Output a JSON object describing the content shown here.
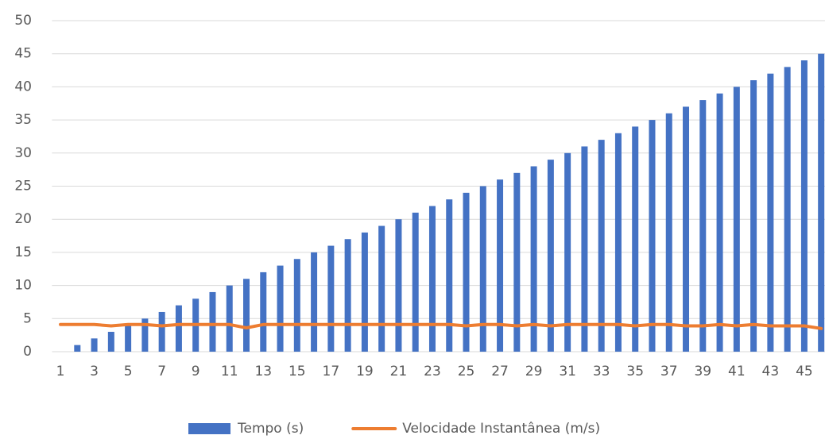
{
  "chart_data": {
    "type": "bar",
    "categories": [
      1,
      null,
      3,
      null,
      5,
      null,
      7,
      null,
      9,
      null,
      11,
      null,
      13,
      null,
      15,
      null,
      17,
      null,
      19,
      null,
      21,
      null,
      23,
      null,
      25,
      null,
      27,
      null,
      29,
      null,
      31,
      null,
      33,
      null,
      35,
      null,
      37,
      null,
      39,
      null,
      41,
      null,
      43,
      null,
      45,
      null
    ],
    "series": [
      {
        "name": "Tempo (s)",
        "type": "bar",
        "color": "#4472c4",
        "values": [
          0,
          1,
          2,
          3,
          4,
          5,
          6,
          7,
          8,
          9,
          10,
          11,
          12,
          13,
          14,
          15,
          16,
          17,
          18,
          19,
          20,
          21,
          22,
          23,
          24,
          25,
          26,
          27,
          28,
          29,
          30,
          31,
          32,
          33,
          34,
          35,
          36,
          37,
          38,
          39,
          40,
          41,
          42,
          43,
          44,
          45
        ]
      },
      {
        "name": "Velocidade Instantânea (m/s)",
        "type": "line",
        "color": "#ed7d31",
        "values": [
          4.1,
          4.1,
          4.1,
          3.9,
          4.1,
          4.1,
          3.9,
          4.1,
          4.1,
          4.1,
          4.1,
          3.6,
          4.1,
          4.1,
          4.1,
          4.1,
          4.1,
          4.1,
          4.1,
          4.1,
          4.1,
          4.1,
          4.1,
          4.1,
          3.9,
          4.1,
          4.1,
          3.9,
          4.1,
          3.9,
          4.1,
          4.1,
          4.1,
          4.1,
          3.9,
          4.1,
          4.1,
          3.9,
          3.9,
          4.1,
          3.9,
          4.1,
          3.9,
          3.9,
          3.9,
          3.5
        ]
      }
    ],
    "ylim": [
      0,
      50
    ],
    "yticks": [
      0,
      5,
      10,
      15,
      20,
      25,
      30,
      35,
      40,
      45,
      50
    ],
    "grid": true,
    "legend": "bottom"
  }
}
